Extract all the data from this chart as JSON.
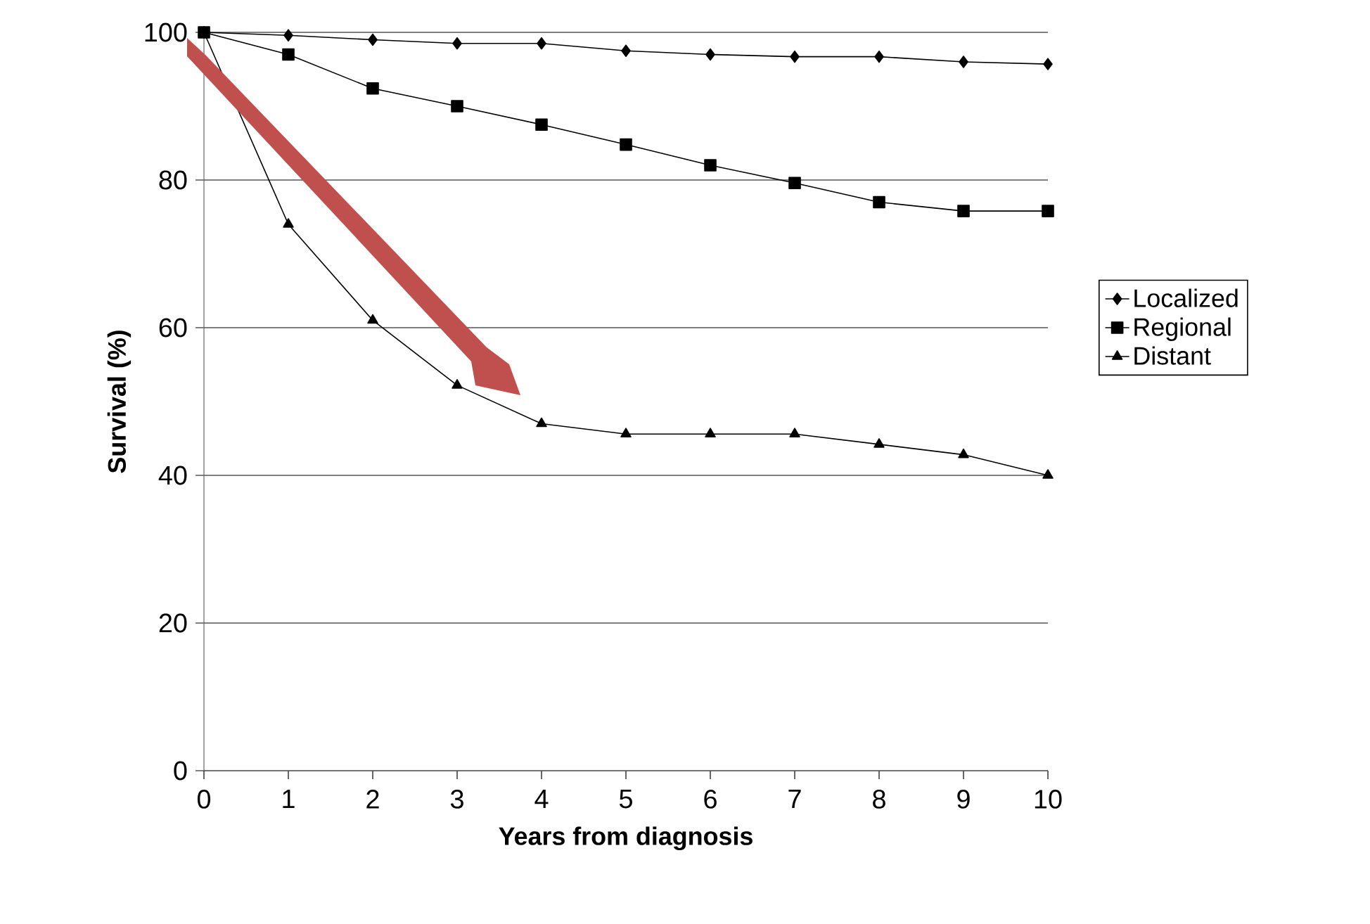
{
  "chart_data": {
    "type": "line",
    "xlabel": "Years from diagnosis",
    "ylabel": "Survival (%)",
    "x": [
      0,
      1,
      2,
      3,
      4,
      5,
      6,
      7,
      8,
      9,
      10
    ],
    "series": [
      {
        "name": "Localized",
        "color": "#000000",
        "marker": "diamond",
        "values": [
          100,
          99.6,
          99,
          98.5,
          98.5,
          97.5,
          97,
          96.7,
          96.7,
          96,
          95.7
        ]
      },
      {
        "name": "Regional",
        "color": "#000000",
        "marker": "square",
        "values": [
          100,
          97,
          92.4,
          90,
          87.5,
          84.8,
          82,
          79.6,
          77,
          75.8,
          75.8
        ]
      },
      {
        "name": "Distant",
        "color": "#000000",
        "marker": "triangle",
        "values": [
          100,
          74,
          61,
          52.2,
          47,
          45.6,
          45.6,
          45.6,
          44.2,
          42.8,
          40
        ]
      }
    ],
    "xlim": [
      0,
      10
    ],
    "ylim": [
      0,
      100
    ],
    "xticks": [
      0,
      1,
      2,
      3,
      4,
      5,
      6,
      7,
      8,
      9,
      10
    ],
    "yticks": [
      0,
      20,
      40,
      60,
      80,
      100
    ],
    "grid": "y",
    "legend": "right",
    "line_style": "solid"
  }
}
